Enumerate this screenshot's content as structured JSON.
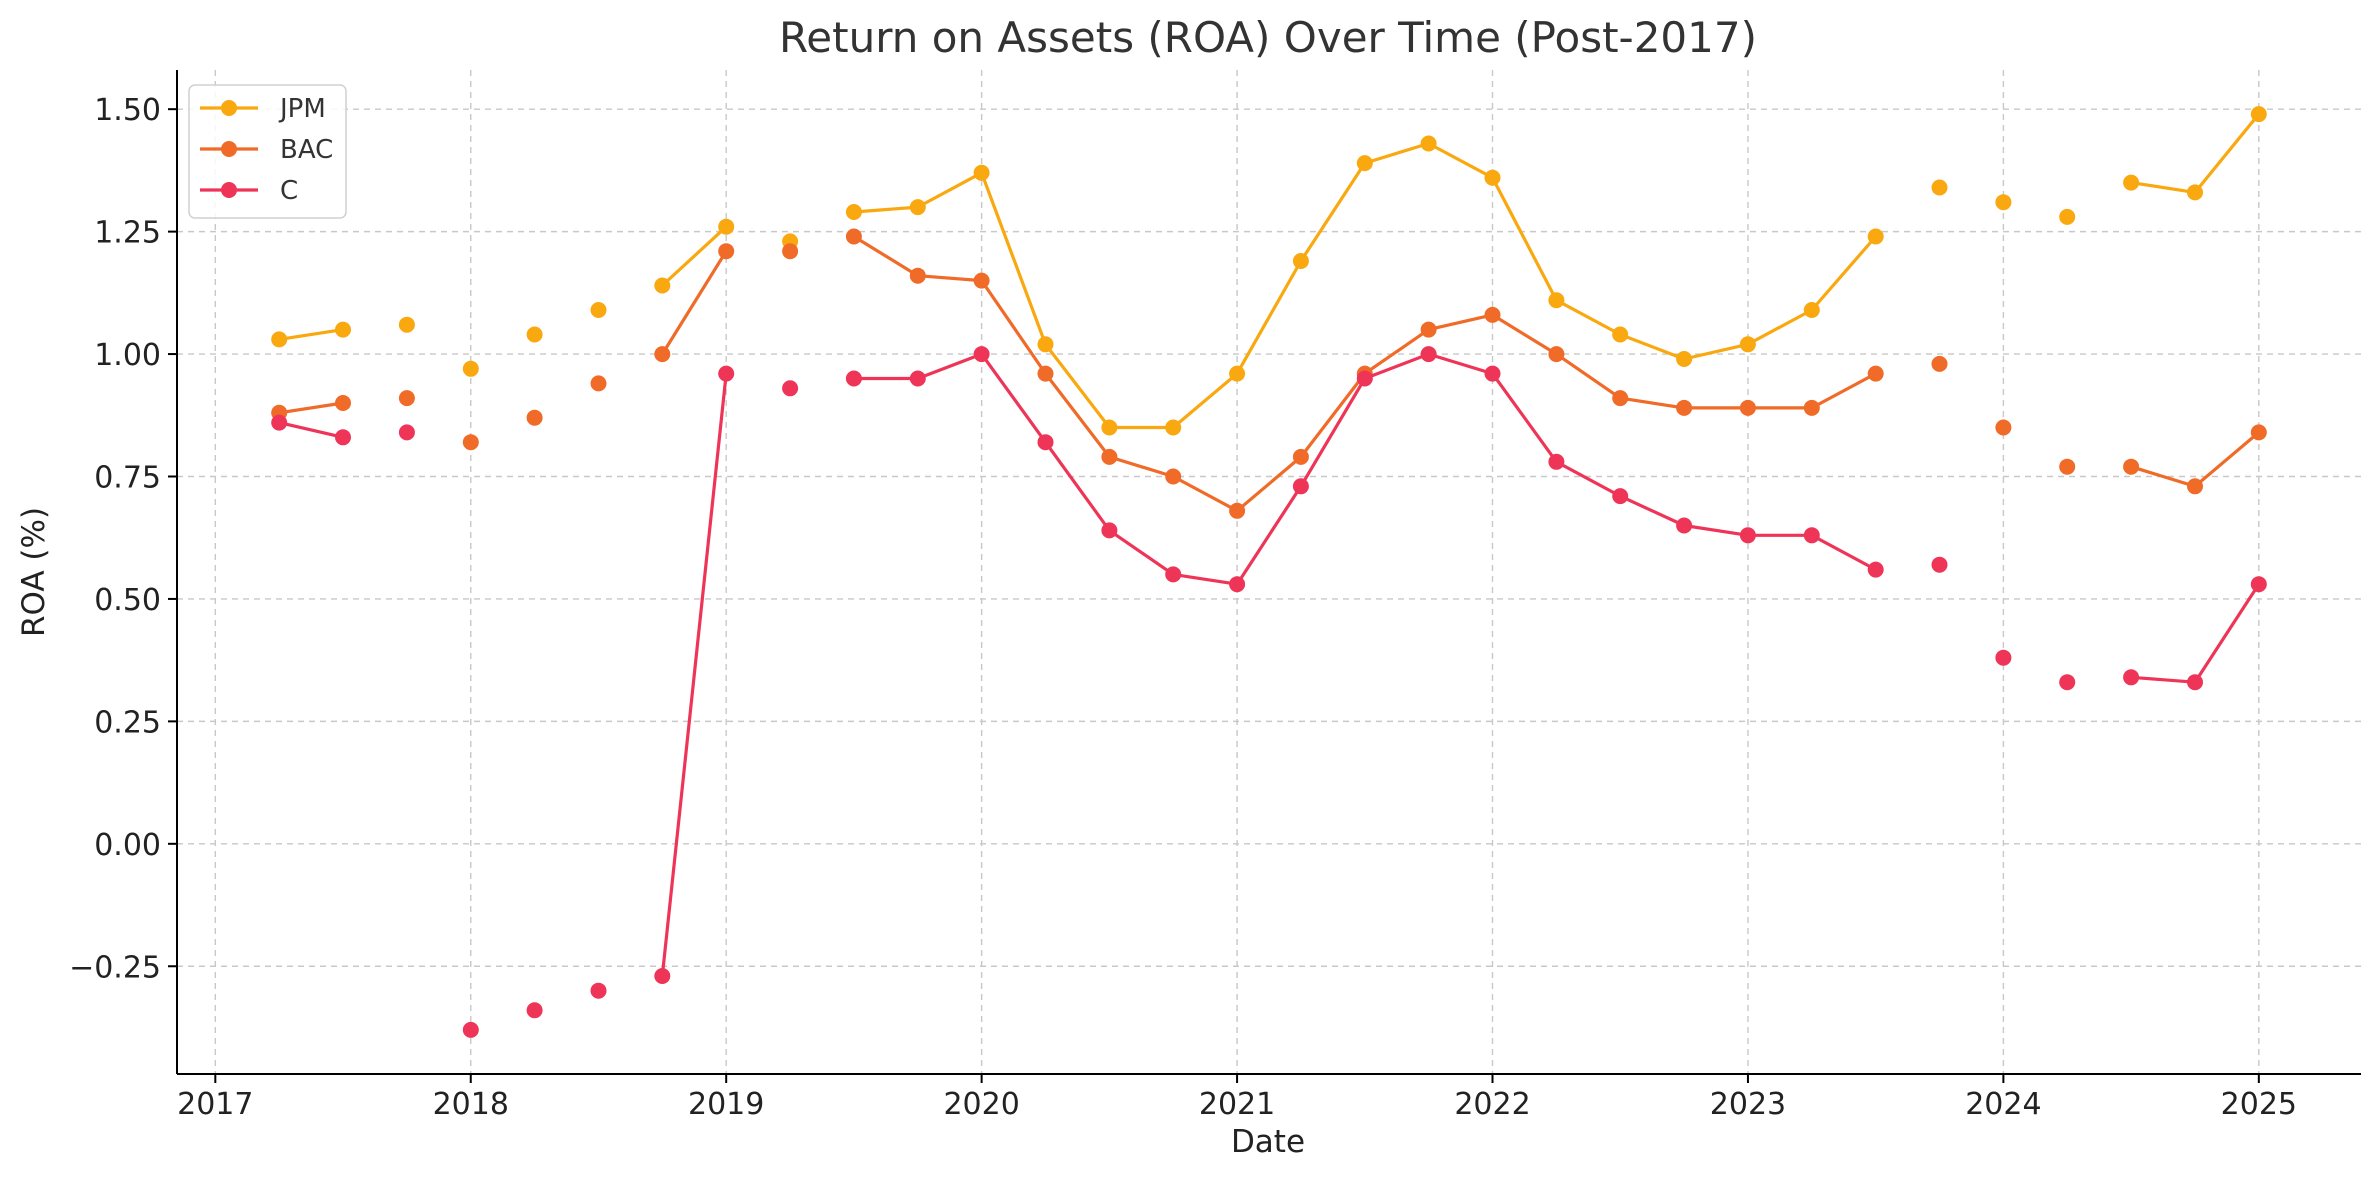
{
  "chart_data": {
    "type": "line",
    "title": "Return on Assets (ROA) Over Time (Post-2017)",
    "xlabel": "Date",
    "ylabel": "ROA (%)",
    "xlim": [
      2016.85,
      2025.4
    ],
    "ylim": [
      -0.47,
      1.58
    ],
    "x_ticks": [
      2017,
      2018,
      2019,
      2020,
      2021,
      2022,
      2023,
      2024,
      2025
    ],
    "x_tick_labels": [
      "2017",
      "2018",
      "2019",
      "2020",
      "2021",
      "2022",
      "2023",
      "2024",
      "2025"
    ],
    "y_ticks": [
      -0.25,
      0,
      0.25,
      0.5,
      0.75,
      1.0,
      1.25,
      1.5
    ],
    "y_tick_labels": [
      "−0.25",
      "0.00",
      "0.25",
      "0.50",
      "0.75",
      "1.00",
      "1.25",
      "1.50"
    ],
    "grid": true,
    "legend": "top-left",
    "x": [
      2017.25,
      2017.5,
      2017.75,
      2018.0,
      2018.25,
      2018.5,
      2018.75,
      2019.0,
      2019.25,
      2019.5,
      2019.75,
      2020.0,
      2020.25,
      2020.5,
      2020.75,
      2021.0,
      2021.25,
      2021.5,
      2021.75,
      2022.0,
      2022.25,
      2022.5,
      2022.75,
      2023.0,
      2023.25,
      2023.5,
      2023.75,
      2024.0,
      2024.25,
      2024.5,
      2024.75,
      2025.0
    ],
    "series": [
      {
        "name": "JPM",
        "color": "#f9a80f",
        "values": [
          1.03,
          1.05,
          1.06,
          0.97,
          1.04,
          1.09,
          1.14,
          1.26,
          1.23,
          1.29,
          1.3,
          1.37,
          1.02,
          0.85,
          0.85,
          0.96,
          1.19,
          1.39,
          1.43,
          1.36,
          1.11,
          1.04,
          0.99,
          1.02,
          1.09,
          1.24,
          1.34,
          1.31,
          1.28,
          1.35,
          1.33,
          1.49
        ],
        "segments": [
          [
            0,
            1
          ],
          [
            6,
            7
          ],
          [
            9,
            25
          ],
          [
            29,
            31
          ]
        ]
      },
      {
        "name": "BAC",
        "color": "#f06a28",
        "values": [
          0.88,
          0.9,
          0.91,
          0.82,
          0.87,
          0.94,
          1.0,
          1.21,
          1.21,
          1.24,
          1.16,
          1.15,
          0.96,
          0.79,
          0.75,
          0.68,
          0.79,
          0.96,
          1.05,
          1.08,
          1.0,
          0.91,
          0.89,
          0.89,
          0.89,
          0.96,
          0.98,
          0.85,
          0.77,
          0.77,
          0.73,
          0.84
        ],
        "segments": [
          [
            0,
            1
          ],
          [
            6,
            7
          ],
          [
            9,
            25
          ],
          [
            29,
            31
          ]
        ]
      },
      {
        "name": "C",
        "color": "#ee3558",
        "values": [
          0.86,
          0.83,
          0.84,
          -0.38,
          -0.34,
          -0.3,
          -0.27,
          0.96,
          0.93,
          0.95,
          0.95,
          1.0,
          0.82,
          0.64,
          0.55,
          0.53,
          0.73,
          0.95,
          1.0,
          0.96,
          0.78,
          0.71,
          0.65,
          0.63,
          0.63,
          0.56,
          0.57,
          0.38,
          0.33,
          0.34,
          0.33,
          0.53
        ],
        "segments": [
          [
            0,
            1
          ],
          [
            6,
            7
          ],
          [
            9,
            25
          ],
          [
            29,
            31
          ]
        ]
      }
    ]
  }
}
